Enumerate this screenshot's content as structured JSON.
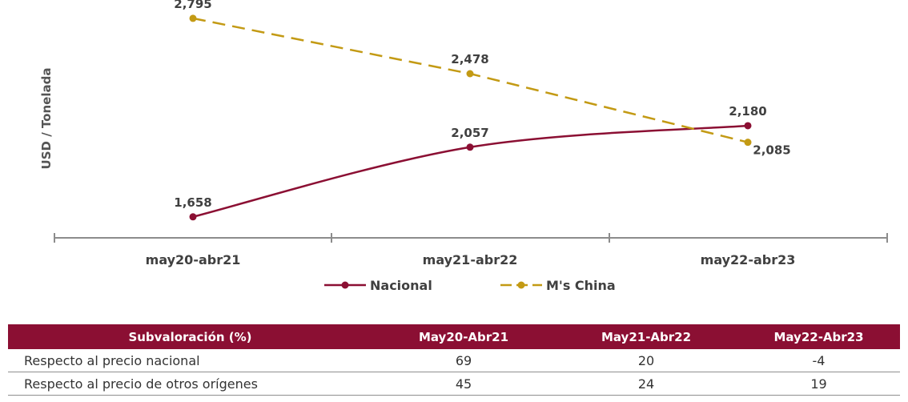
{
  "chart_data": {
    "type": "line",
    "categories": [
      "may20-abr21",
      "may21-abr22",
      "may22-abr23"
    ],
    "ylabel": "USD / Tonelada",
    "ylim": [
      1400,
      2900
    ],
    "grid": false,
    "legend_position": "bottom",
    "series": [
      {
        "name": "Nacional",
        "values": [
          1658,
          2057,
          2180
        ],
        "labels": [
          "1,658",
          "2,057",
          "2,180"
        ],
        "color": "#8b0f33",
        "style": "solid"
      },
      {
        "name": "M's China",
        "values": [
          2795,
          2478,
          2085
        ],
        "labels": [
          "2,795",
          "2,478",
          "2,085"
        ],
        "color": "#c39a14",
        "style": "dashed"
      }
    ]
  },
  "table": {
    "header": [
      "Subvaloración (%)",
      "May20-Abr21",
      "May21-Abr22",
      "May22-Abr23"
    ],
    "rows": [
      {
        "label": "Respecto al precio nacional",
        "values": [
          "69",
          "20",
          "-4"
        ]
      },
      {
        "label": "Respecto al precio de otros orígenes",
        "values": [
          "45",
          "24",
          "19"
        ]
      }
    ]
  }
}
